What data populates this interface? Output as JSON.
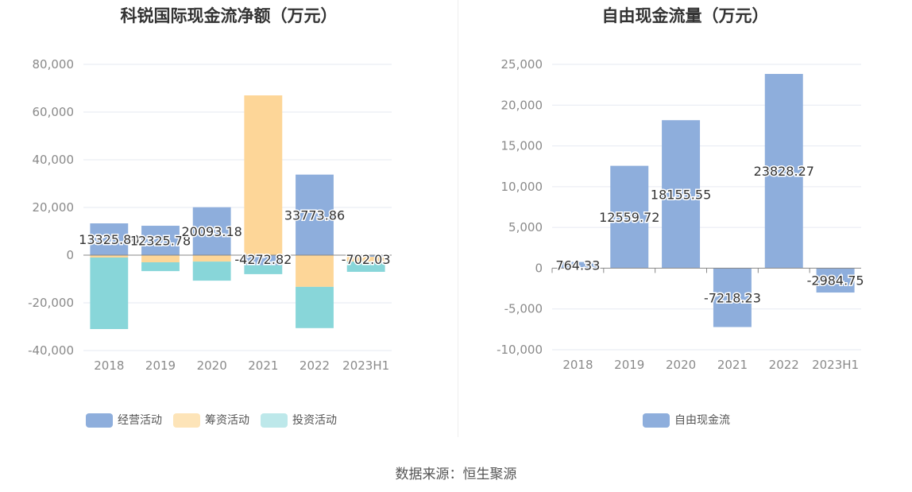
{
  "chart_data": [
    {
      "type": "bar",
      "stacked": true,
      "title": "科锐国际现金流净额（万元）",
      "categories": [
        "2018",
        "2019",
        "2020",
        "2021",
        "2022",
        "2023H1"
      ],
      "ylim": [
        -40000,
        80000
      ],
      "yticks": [
        "80,000",
        "60,000",
        "40,000",
        "20,000",
        "0",
        "-20,000",
        "-40,000"
      ],
      "series": [
        {
          "name": "经营活动",
          "color": "#8eaedc",
          "values": [
            13325.8,
            12325.78,
            20093.18,
            -4272.82,
            33773.86,
            -702.03
          ],
          "labels": [
            "13325.80",
            "12325.78",
            "20093.18",
            "-4272.82",
            "33773.86",
            "-702.03"
          ]
        },
        {
          "name": "筹资活动",
          "color": "#fdd698",
          "values": [
            -1000,
            -3000,
            -2700,
            67000,
            -13300,
            -2000
          ]
        },
        {
          "name": "投资活动",
          "color": "#88d6d9",
          "values": [
            -30000,
            -3700,
            -8000,
            -3700,
            -17300,
            -4300
          ]
        }
      ],
      "legend": "bottom"
    },
    {
      "type": "bar",
      "title": "自由现金流量（万元）",
      "categories": [
        "2018",
        "2019",
        "2020",
        "2021",
        "2022",
        "2023H1"
      ],
      "ylim": [
        -10000,
        25000
      ],
      "yticks": [
        "25,000",
        "20,000",
        "15,000",
        "10,000",
        "5,000",
        "0",
        "-5,000",
        "-10,000"
      ],
      "series": [
        {
          "name": "自由现金流",
          "color": "#8eaedc",
          "values": [
            764.33,
            12559.72,
            18155.55,
            -7218.23,
            23828.27,
            -2984.75
          ],
          "labels": [
            "764.33",
            "12559.72",
            "18155.55",
            "-7218.23",
            "23828.27",
            "-2984.75"
          ]
        }
      ],
      "legend": "bottom"
    }
  ],
  "source": "数据来源：恒生聚源"
}
